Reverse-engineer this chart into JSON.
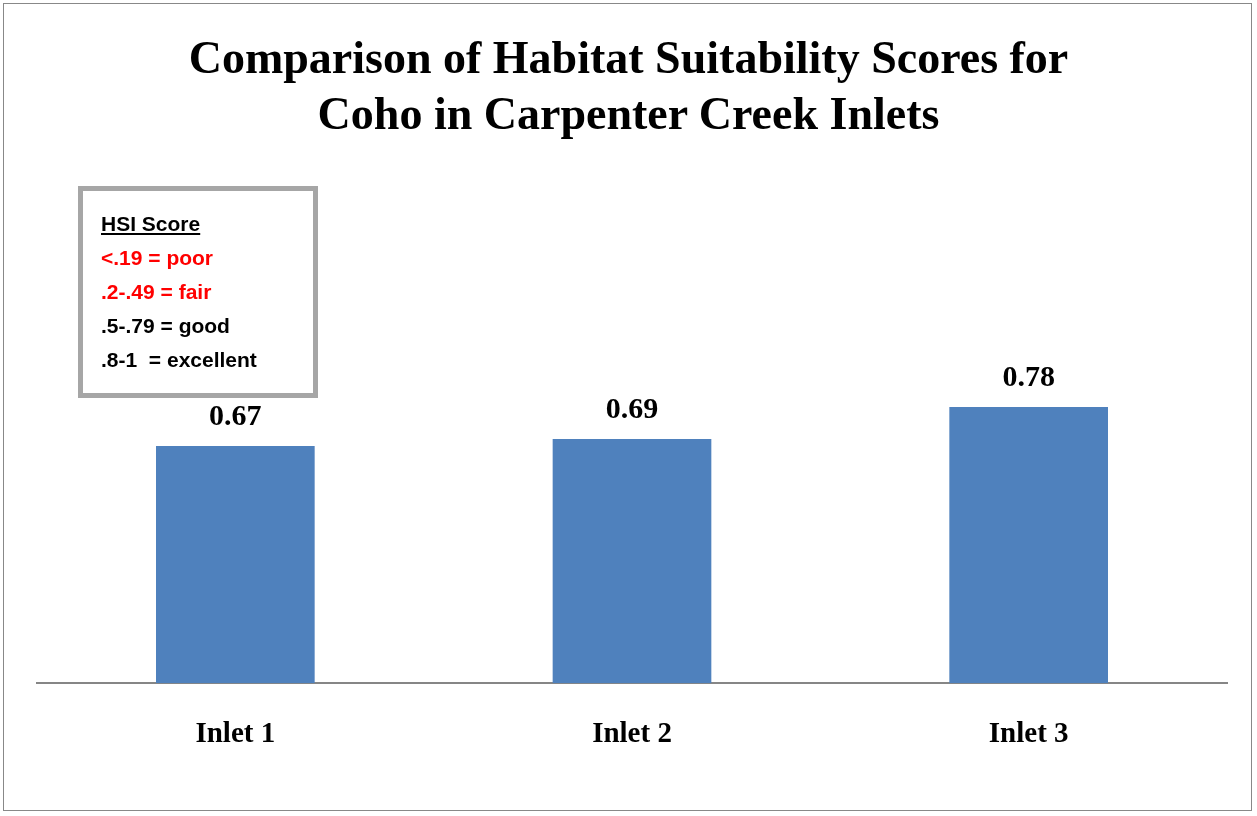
{
  "chart_data": {
    "type": "bar",
    "title": "Comparison of Habitat Suitability Scores for Coho in Carpenter Creek Inlets",
    "categories": [
      "Inlet 1",
      "Inlet 2",
      "Inlet 3"
    ],
    "values": [
      0.67,
      0.69,
      0.78
    ],
    "color": "#4f81bd",
    "tick_labels": "x",
    "data_labels": true,
    "grid": false,
    "legend": false,
    "annotations": [
      "HSI Score",
      "<.19 = poor",
      ".2-.49 = fair",
      ".5-.79 = good",
      ".8-1  = excellent"
    ]
  }
}
